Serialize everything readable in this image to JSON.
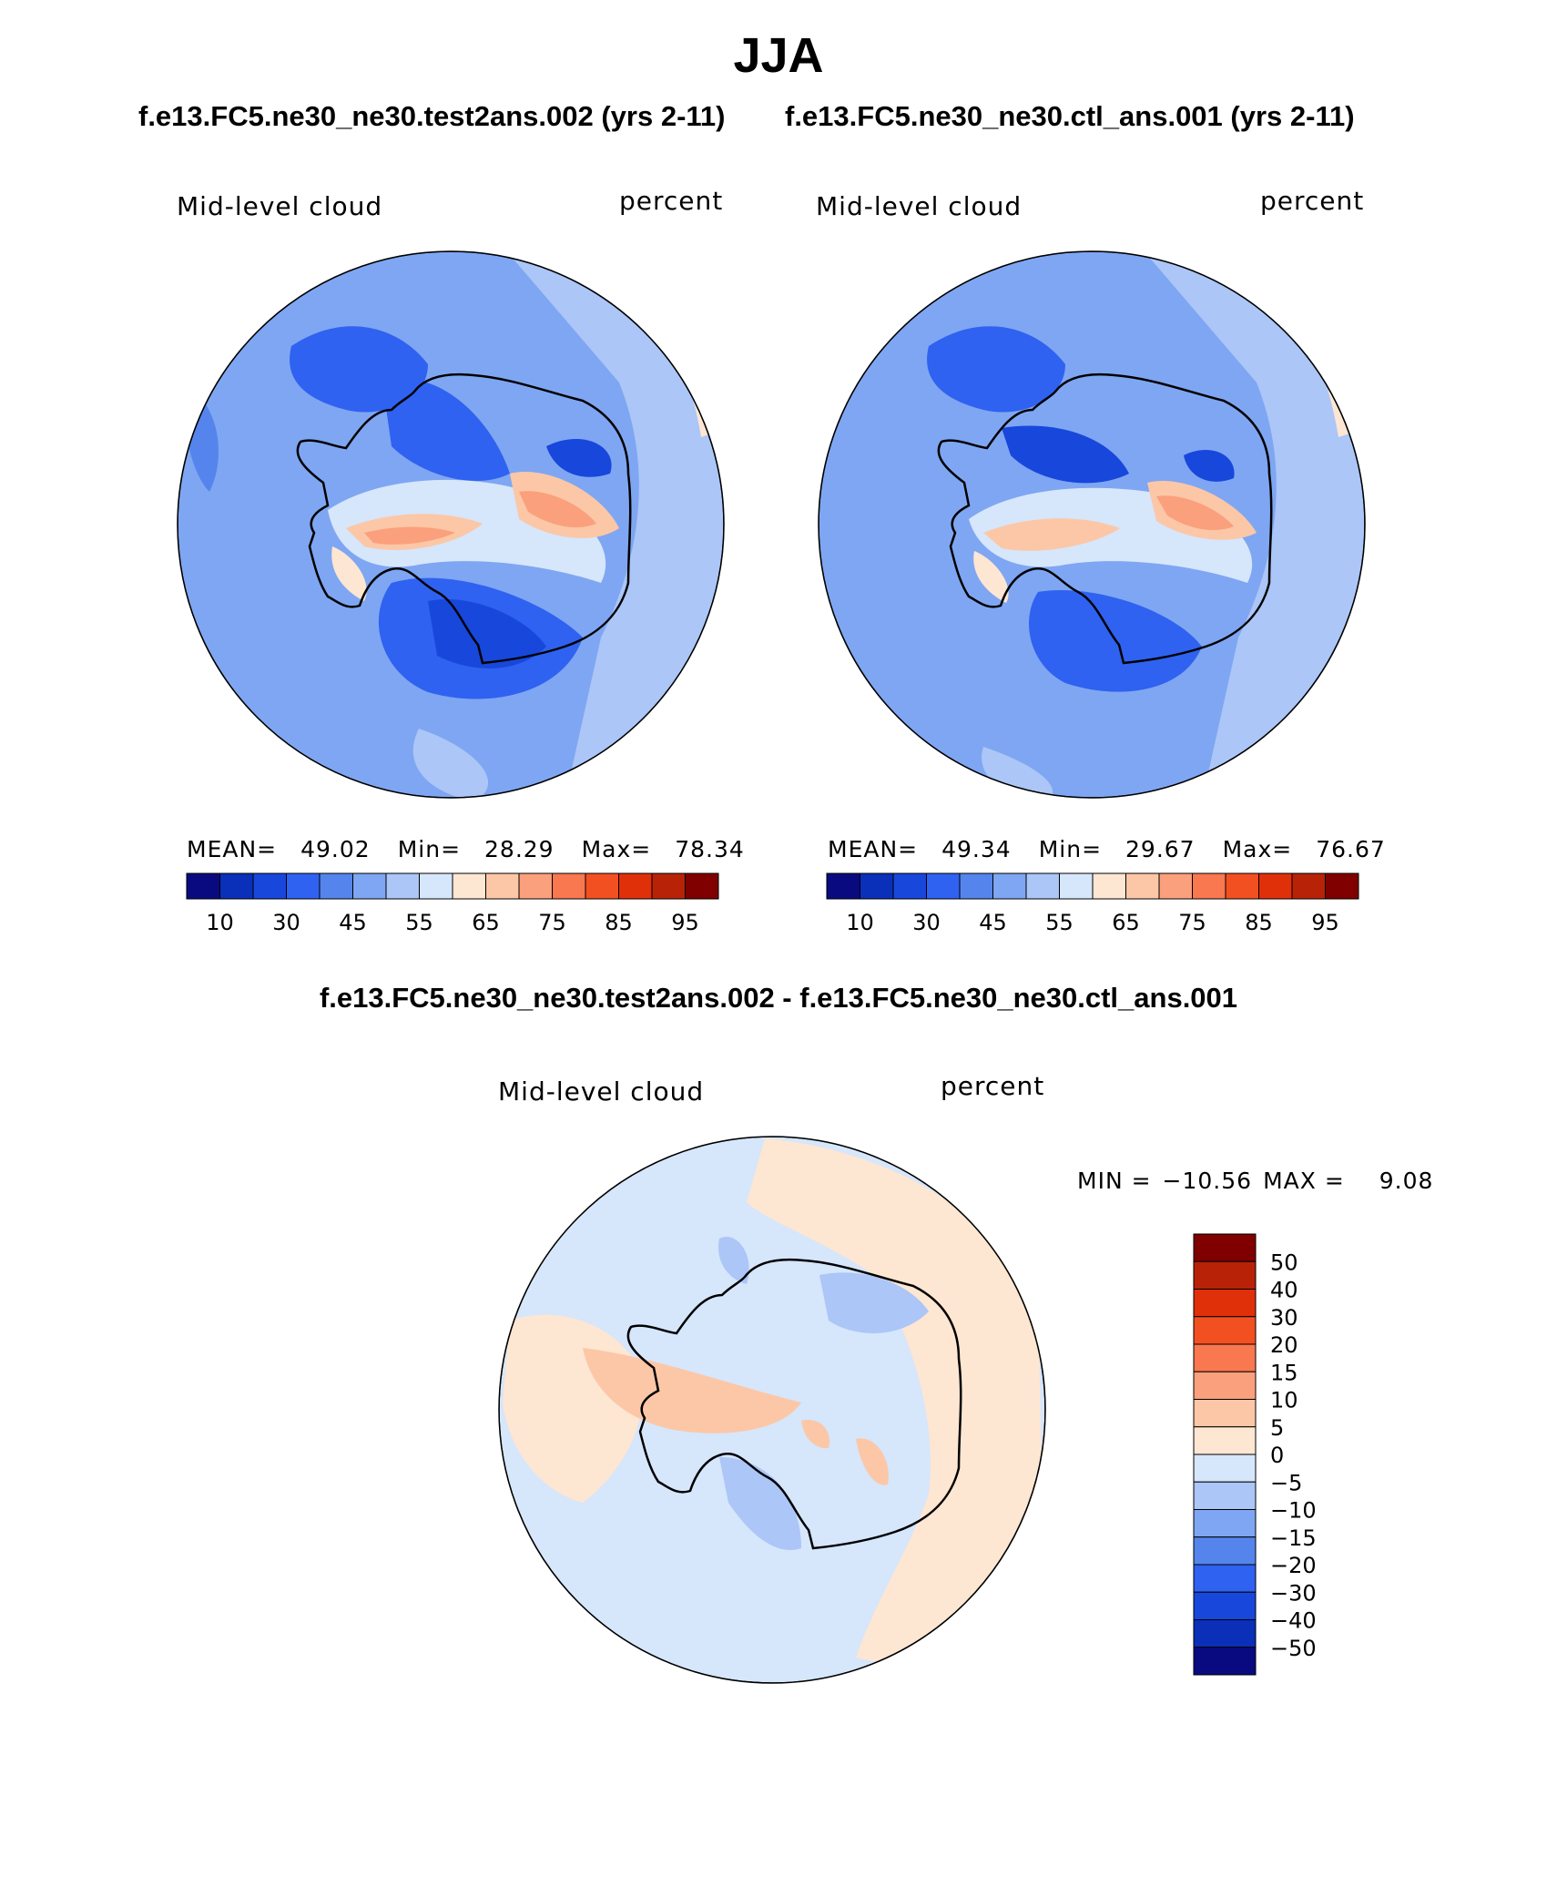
{
  "title": "JJA",
  "top_panels": [
    {
      "case": "f.e13.FC5.ne30_ne30.test2ans.002 (yrs 2-11)",
      "variable": "Mid-level cloud",
      "units": "percent",
      "mean_label": "MEAN=",
      "mean": "49.02",
      "min_label": "Min=",
      "min": "28.29",
      "max_label": "Max=",
      "max": "78.34"
    },
    {
      "case": "f.e13.FC5.ne30_ne30.ctl_ans.001 (yrs 2-11)",
      "variable": "Mid-level cloud",
      "units": "percent",
      "mean_label": "MEAN=",
      "mean": "49.34",
      "min_label": "Min=",
      "min": "29.67",
      "max_label": "Max=",
      "max": "76.67"
    }
  ],
  "top_colorbar": {
    "colors": [
      "#0a0a80",
      "#0a2fb8",
      "#1847dc",
      "#2f62f0",
      "#5585ec",
      "#7fa6f2",
      "#abc6f7",
      "#d6e6fb",
      "#fde6d2",
      "#fcc7a6",
      "#fba07c",
      "#f97850",
      "#f35022",
      "#e0300a",
      "#b82308",
      "#800000"
    ],
    "tick_labels": [
      "10",
      "30",
      "45",
      "55",
      "65",
      "75",
      "85",
      "95"
    ]
  },
  "diff_panel": {
    "title": "f.e13.FC5.ne30_ne30.test2ans.002 - f.e13.FC5.ne30_ne30.ctl_ans.001",
    "variable": "Mid-level cloud",
    "units": "percent",
    "min_label": "MIN =",
    "min": "−10.56",
    "max_label": "MAX =",
    "max": "9.08"
  },
  "diff_colorbar": {
    "colors": [
      "#0a0a80",
      "#0a2fb8",
      "#1847dc",
      "#2f62f0",
      "#5585ec",
      "#7fa6f2",
      "#abc6f7",
      "#d6e6fb",
      "#fde6d2",
      "#fcc7a6",
      "#fba07c",
      "#f97850",
      "#f35022",
      "#e0300a",
      "#b82308",
      "#800000"
    ],
    "tick_labels": [
      "50",
      "40",
      "30",
      "20",
      "15",
      "10",
      "5",
      "0",
      "−5",
      "−10",
      "−15",
      "−20",
      "−30",
      "−40",
      "−50"
    ]
  }
}
